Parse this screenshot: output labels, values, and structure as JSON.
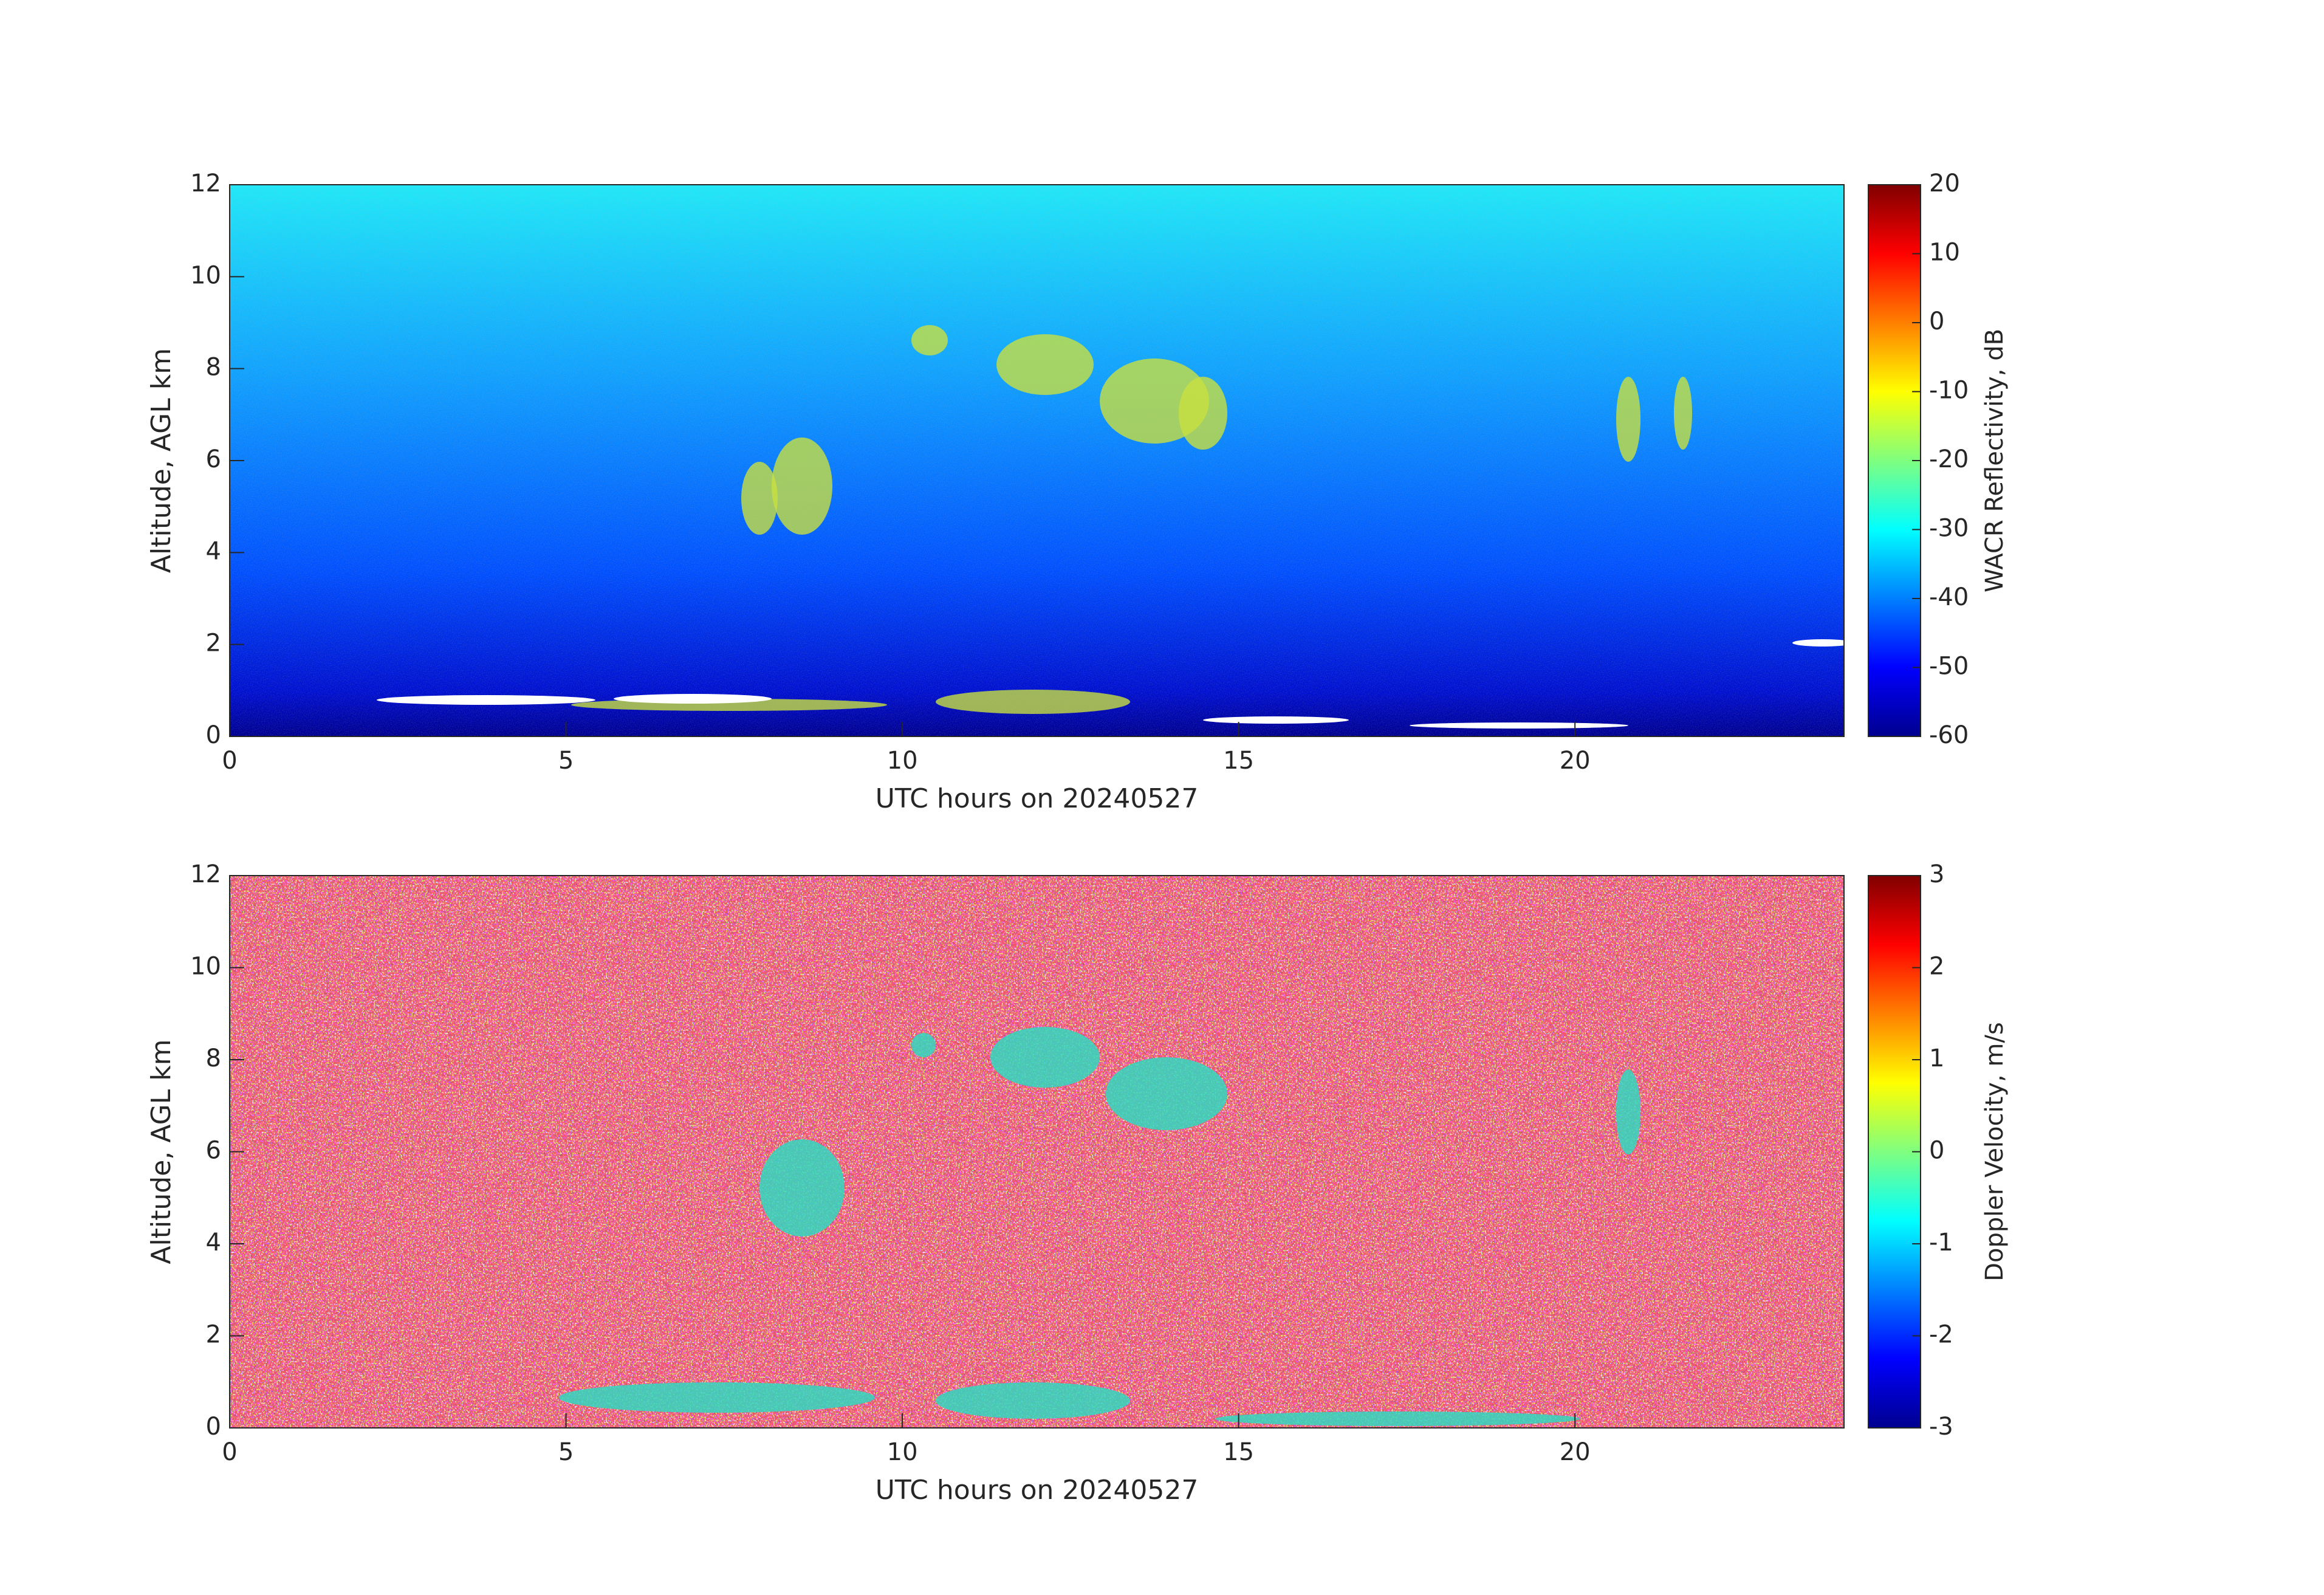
{
  "chart_data": [
    {
      "type": "heatmap",
      "xlabel": "UTC hours on 20240527",
      "ylabel": "Altitude, AGL km",
      "xlim": [
        0,
        24
      ],
      "xticks": [
        0,
        5,
        10,
        15,
        20
      ],
      "ylim": [
        0,
        12
      ],
      "yticks": [
        0,
        2,
        4,
        6,
        8,
        10,
        12
      ],
      "colorbar": {
        "label": "WACR Reflectivity, dB",
        "lim": [
          -60,
          20
        ],
        "ticks": [
          -60,
          -50,
          -40,
          -30,
          -20,
          -10,
          0,
          10,
          20
        ],
        "colormap": "jet"
      }
    },
    {
      "type": "heatmap",
      "xlabel": "UTC hours on 20240527",
      "ylabel": "Altitude, AGL km",
      "xlim": [
        0,
        24
      ],
      "xticks": [
        0,
        5,
        10,
        15,
        20
      ],
      "ylim": [
        0,
        12
      ],
      "yticks": [
        0,
        2,
        4,
        6,
        8,
        10,
        12
      ],
      "colorbar": {
        "label": "Doppler Velocity, m/s",
        "lim": [
          -3,
          3
        ],
        "ticks": [
          -3,
          -2,
          -1,
          0,
          1,
          2,
          3
        ],
        "colormap": "jet"
      }
    }
  ]
}
